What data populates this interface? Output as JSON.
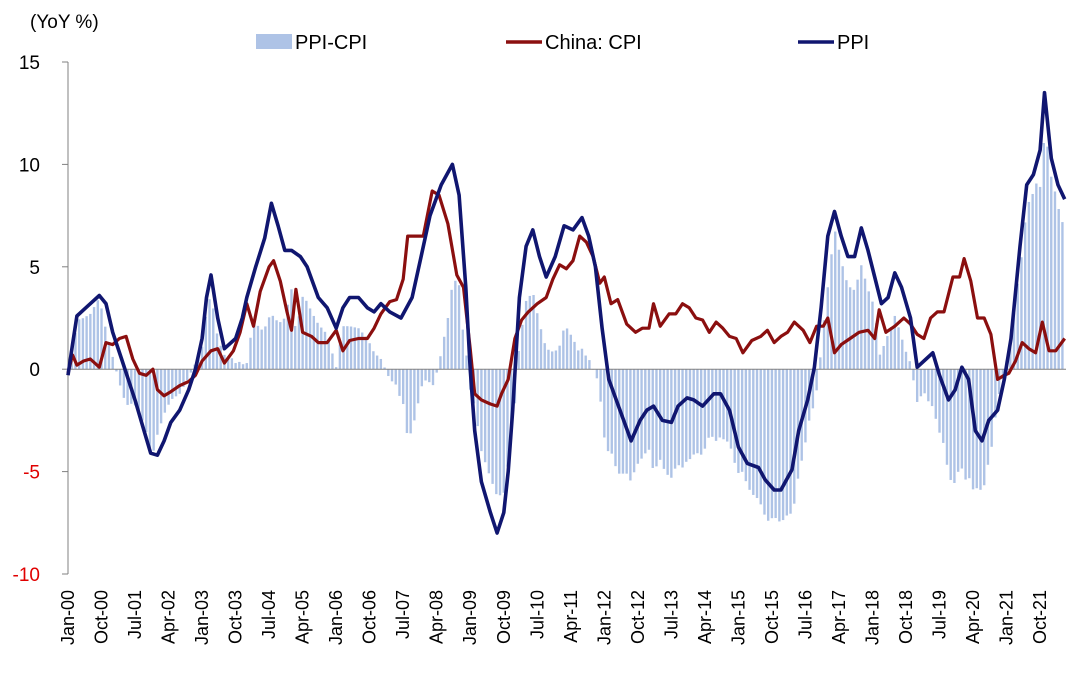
{
  "chart_data": {
    "type": "bar+line",
    "unit_label": "(YoY %)",
    "ylim": [
      -10,
      15
    ],
    "yticks": [
      "15",
      "10",
      "5",
      "0",
      "-5",
      "-10"
    ],
    "x_ticks": [
      "Jan-00",
      "Oct-00",
      "Jul-01",
      "Apr-02",
      "Jan-03",
      "Oct-03",
      "Jul-04",
      "Apr-05",
      "Jan-06",
      "Oct-06",
      "Jul-07",
      "Apr-08",
      "Jan-09",
      "Oct-09",
      "Jul-10",
      "Apr-11",
      "Jan-12",
      "Oct-12",
      "Jul-13",
      "Apr-14",
      "Jan-15",
      "Oct-15",
      "Jul-16",
      "Apr-17",
      "Jan-18",
      "Oct-18",
      "Jul-19",
      "Apr-20",
      "Jan-21",
      "Oct-21"
    ],
    "x_start": 2000.0,
    "x_end": 2022.33,
    "legend": {
      "ppi_cpi": "PPI-CPI",
      "cpi": "China: CPI",
      "ppi": "PPI"
    },
    "colors": {
      "ppi_cpi": "#aec3e6",
      "cpi": "#8b0f0f",
      "ppi": "#101670",
      "negative_tick": "#e00000"
    },
    "series": [
      {
        "name": "PPI",
        "points": [
          [
            2000.0,
            -0.3
          ],
          [
            2000.1,
            1.2
          ],
          [
            2000.2,
            2.6
          ],
          [
            2000.35,
            2.9
          ],
          [
            2000.5,
            3.2
          ],
          [
            2000.7,
            3.6
          ],
          [
            2000.85,
            3.2
          ],
          [
            2001.0,
            1.8
          ],
          [
            2001.2,
            0.5
          ],
          [
            2001.35,
            -0.5
          ],
          [
            2001.5,
            -1.5
          ],
          [
            2001.7,
            -3.0
          ],
          [
            2001.85,
            -4.1
          ],
          [
            2002.0,
            -4.2
          ],
          [
            2002.15,
            -3.5
          ],
          [
            2002.3,
            -2.6
          ],
          [
            2002.5,
            -2.0
          ],
          [
            2002.7,
            -1.0
          ],
          [
            2002.85,
            0.0
          ],
          [
            2003.0,
            1.5
          ],
          [
            2003.1,
            3.5
          ],
          [
            2003.2,
            4.6
          ],
          [
            2003.35,
            2.5
          ],
          [
            2003.5,
            1.0
          ],
          [
            2003.75,
            1.5
          ],
          [
            2003.9,
            2.5
          ],
          [
            2004.0,
            3.5
          ],
          [
            2004.2,
            5.0
          ],
          [
            2004.4,
            6.4
          ],
          [
            2004.55,
            8.1
          ],
          [
            2004.7,
            7.0
          ],
          [
            2004.85,
            5.8
          ],
          [
            2005.0,
            5.8
          ],
          [
            2005.2,
            5.5
          ],
          [
            2005.35,
            5.0
          ],
          [
            2005.6,
            3.5
          ],
          [
            2005.8,
            3.0
          ],
          [
            2006.0,
            2.0
          ],
          [
            2006.15,
            3.0
          ],
          [
            2006.3,
            3.5
          ],
          [
            2006.5,
            3.5
          ],
          [
            2006.7,
            3.0
          ],
          [
            2006.85,
            2.8
          ],
          [
            2007.0,
            3.2
          ],
          [
            2007.2,
            2.8
          ],
          [
            2007.45,
            2.5
          ],
          [
            2007.7,
            3.5
          ],
          [
            2007.9,
            5.5
          ],
          [
            2008.1,
            7.5
          ],
          [
            2008.35,
            9.0
          ],
          [
            2008.6,
            10.0
          ],
          [
            2008.75,
            8.5
          ],
          [
            2008.9,
            4.0
          ],
          [
            2009.0,
            0.0
          ],
          [
            2009.1,
            -3.0
          ],
          [
            2009.25,
            -5.5
          ],
          [
            2009.45,
            -7.0
          ],
          [
            2009.6,
            -8.0
          ],
          [
            2009.75,
            -7.0
          ],
          [
            2009.85,
            -5.0
          ],
          [
            2009.95,
            -2.0
          ],
          [
            2010.1,
            3.5
          ],
          [
            2010.25,
            6.0
          ],
          [
            2010.4,
            6.8
          ],
          [
            2010.55,
            5.5
          ],
          [
            2010.7,
            4.5
          ],
          [
            2010.9,
            5.5
          ],
          [
            2011.1,
            7.0
          ],
          [
            2011.3,
            6.8
          ],
          [
            2011.5,
            7.4
          ],
          [
            2011.65,
            6.5
          ],
          [
            2011.8,
            5.0
          ],
          [
            2011.95,
            2.0
          ],
          [
            2012.1,
            -0.5
          ],
          [
            2012.35,
            -2.0
          ],
          [
            2012.6,
            -3.5
          ],
          [
            2012.8,
            -2.5
          ],
          [
            2012.95,
            -2.0
          ],
          [
            2013.1,
            -1.8
          ],
          [
            2013.3,
            -2.5
          ],
          [
            2013.5,
            -2.6
          ],
          [
            2013.65,
            -1.8
          ],
          [
            2013.85,
            -1.4
          ],
          [
            2014.0,
            -1.5
          ],
          [
            2014.2,
            -1.8
          ],
          [
            2014.45,
            -1.2
          ],
          [
            2014.6,
            -1.2
          ],
          [
            2014.8,
            -2.0
          ],
          [
            2015.0,
            -3.8
          ],
          [
            2015.2,
            -4.6
          ],
          [
            2015.45,
            -4.8
          ],
          [
            2015.6,
            -5.4
          ],
          [
            2015.8,
            -5.9
          ],
          [
            2015.95,
            -5.9
          ],
          [
            2016.2,
            -4.9
          ],
          [
            2016.35,
            -3.0
          ],
          [
            2016.55,
            -1.5
          ],
          [
            2016.7,
            0.1
          ],
          [
            2016.85,
            3.0
          ],
          [
            2017.0,
            6.5
          ],
          [
            2017.15,
            7.7
          ],
          [
            2017.3,
            6.5
          ],
          [
            2017.45,
            5.5
          ],
          [
            2017.6,
            5.5
          ],
          [
            2017.75,
            6.9
          ],
          [
            2017.9,
            5.8
          ],
          [
            2018.05,
            4.5
          ],
          [
            2018.2,
            3.2
          ],
          [
            2018.35,
            3.5
          ],
          [
            2018.5,
            4.7
          ],
          [
            2018.65,
            4.0
          ],
          [
            2018.85,
            2.5
          ],
          [
            2019.0,
            0.1
          ],
          [
            2019.2,
            0.5
          ],
          [
            2019.35,
            0.8
          ],
          [
            2019.5,
            -0.3
          ],
          [
            2019.7,
            -1.5
          ],
          [
            2019.85,
            -1.0
          ],
          [
            2020.0,
            0.1
          ],
          [
            2020.15,
            -0.5
          ],
          [
            2020.3,
            -3.0
          ],
          [
            2020.45,
            -3.5
          ],
          [
            2020.6,
            -2.5
          ],
          [
            2020.8,
            -2.0
          ],
          [
            2020.95,
            -0.5
          ],
          [
            2021.1,
            1.5
          ],
          [
            2021.3,
            6.0
          ],
          [
            2021.45,
            9.0
          ],
          [
            2021.6,
            9.5
          ],
          [
            2021.75,
            10.7
          ],
          [
            2021.85,
            13.5
          ],
          [
            2022.0,
            10.3
          ],
          [
            2022.15,
            9.0
          ],
          [
            2022.3,
            8.3
          ]
        ]
      },
      {
        "name": "China: CPI",
        "points": [
          [
            2000.0,
            -0.2
          ],
          [
            2000.1,
            0.7
          ],
          [
            2000.2,
            0.2
          ],
          [
            2000.35,
            0.4
          ],
          [
            2000.5,
            0.5
          ],
          [
            2000.7,
            0.1
          ],
          [
            2000.85,
            1.3
          ],
          [
            2001.0,
            1.2
          ],
          [
            2001.15,
            1.5
          ],
          [
            2001.3,
            1.6
          ],
          [
            2001.45,
            0.5
          ],
          [
            2001.6,
            -0.2
          ],
          [
            2001.75,
            -0.3
          ],
          [
            2001.9,
            0.0
          ],
          [
            2002.0,
            -1.0
          ],
          [
            2002.15,
            -1.3
          ],
          [
            2002.3,
            -1.1
          ],
          [
            2002.5,
            -0.8
          ],
          [
            2002.7,
            -0.6
          ],
          [
            2002.85,
            -0.3
          ],
          [
            2003.0,
            0.4
          ],
          [
            2003.2,
            0.9
          ],
          [
            2003.35,
            1.0
          ],
          [
            2003.5,
            0.3
          ],
          [
            2003.7,
            0.9
          ],
          [
            2003.85,
            1.8
          ],
          [
            2004.0,
            3.2
          ],
          [
            2004.15,
            2.1
          ],
          [
            2004.3,
            3.8
          ],
          [
            2004.5,
            5.0
          ],
          [
            2004.6,
            5.3
          ],
          [
            2004.75,
            4.3
          ],
          [
            2004.9,
            2.8
          ],
          [
            2005.0,
            1.9
          ],
          [
            2005.1,
            3.9
          ],
          [
            2005.25,
            1.8
          ],
          [
            2005.45,
            1.6
          ],
          [
            2005.6,
            1.3
          ],
          [
            2005.8,
            1.3
          ],
          [
            2006.0,
            1.9
          ],
          [
            2006.15,
            0.9
          ],
          [
            2006.3,
            1.4
          ],
          [
            2006.5,
            1.5
          ],
          [
            2006.7,
            1.5
          ],
          [
            2006.85,
            2.0
          ],
          [
            2007.0,
            2.7
          ],
          [
            2007.2,
            3.3
          ],
          [
            2007.35,
            3.4
          ],
          [
            2007.5,
            4.4
          ],
          [
            2007.6,
            6.5
          ],
          [
            2007.8,
            6.5
          ],
          [
            2007.95,
            6.5
          ],
          [
            2008.15,
            8.7
          ],
          [
            2008.3,
            8.5
          ],
          [
            2008.5,
            7.1
          ],
          [
            2008.7,
            4.6
          ],
          [
            2008.85,
            4.0
          ],
          [
            2009.0,
            1.0
          ],
          [
            2009.1,
            -1.2
          ],
          [
            2009.25,
            -1.5
          ],
          [
            2009.45,
            -1.7
          ],
          [
            2009.6,
            -1.8
          ],
          [
            2009.7,
            -1.2
          ],
          [
            2009.85,
            -0.5
          ],
          [
            2010.0,
            1.5
          ],
          [
            2010.15,
            2.4
          ],
          [
            2010.3,
            2.8
          ],
          [
            2010.5,
            3.2
          ],
          [
            2010.7,
            3.5
          ],
          [
            2010.85,
            4.4
          ],
          [
            2011.0,
            5.1
          ],
          [
            2011.15,
            4.9
          ],
          [
            2011.3,
            5.3
          ],
          [
            2011.45,
            6.5
          ],
          [
            2011.6,
            6.2
          ],
          [
            2011.75,
            5.5
          ],
          [
            2011.9,
            4.2
          ],
          [
            2012.0,
            4.5
          ],
          [
            2012.15,
            3.2
          ],
          [
            2012.3,
            3.4
          ],
          [
            2012.5,
            2.2
          ],
          [
            2012.7,
            1.8
          ],
          [
            2012.85,
            2.0
          ],
          [
            2013.0,
            2.0
          ],
          [
            2013.1,
            3.2
          ],
          [
            2013.25,
            2.1
          ],
          [
            2013.45,
            2.7
          ],
          [
            2013.6,
            2.7
          ],
          [
            2013.75,
            3.2
          ],
          [
            2013.9,
            3.0
          ],
          [
            2014.05,
            2.5
          ],
          [
            2014.2,
            2.4
          ],
          [
            2014.35,
            1.8
          ],
          [
            2014.5,
            2.3
          ],
          [
            2014.65,
            2.0
          ],
          [
            2014.8,
            1.6
          ],
          [
            2014.95,
            1.5
          ],
          [
            2015.1,
            0.8
          ],
          [
            2015.3,
            1.4
          ],
          [
            2015.5,
            1.6
          ],
          [
            2015.65,
            1.9
          ],
          [
            2015.8,
            1.3
          ],
          [
            2015.95,
            1.6
          ],
          [
            2016.1,
            1.8
          ],
          [
            2016.25,
            2.3
          ],
          [
            2016.45,
            1.9
          ],
          [
            2016.6,
            1.3
          ],
          [
            2016.75,
            2.1
          ],
          [
            2016.9,
            2.1
          ],
          [
            2017.0,
            2.5
          ],
          [
            2017.15,
            0.8
          ],
          [
            2017.3,
            1.2
          ],
          [
            2017.5,
            1.5
          ],
          [
            2017.7,
            1.8
          ],
          [
            2017.9,
            1.9
          ],
          [
            2018.05,
            1.5
          ],
          [
            2018.15,
            2.9
          ],
          [
            2018.3,
            1.8
          ],
          [
            2018.5,
            2.1
          ],
          [
            2018.7,
            2.5
          ],
          [
            2018.85,
            2.2
          ],
          [
            2019.0,
            1.7
          ],
          [
            2019.15,
            1.5
          ],
          [
            2019.3,
            2.5
          ],
          [
            2019.45,
            2.8
          ],
          [
            2019.6,
            2.8
          ],
          [
            2019.8,
            4.5
          ],
          [
            2019.95,
            4.5
          ],
          [
            2020.05,
            5.4
          ],
          [
            2020.2,
            4.3
          ],
          [
            2020.35,
            2.5
          ],
          [
            2020.5,
            2.5
          ],
          [
            2020.65,
            1.7
          ],
          [
            2020.8,
            -0.5
          ],
          [
            2020.95,
            -0.3
          ],
          [
            2021.05,
            -0.2
          ],
          [
            2021.2,
            0.4
          ],
          [
            2021.35,
            1.3
          ],
          [
            2021.5,
            1.0
          ],
          [
            2021.65,
            0.8
          ],
          [
            2021.8,
            2.3
          ],
          [
            2021.95,
            0.9
          ],
          [
            2022.1,
            0.9
          ],
          [
            2022.3,
            1.5
          ]
        ]
      }
    ]
  }
}
